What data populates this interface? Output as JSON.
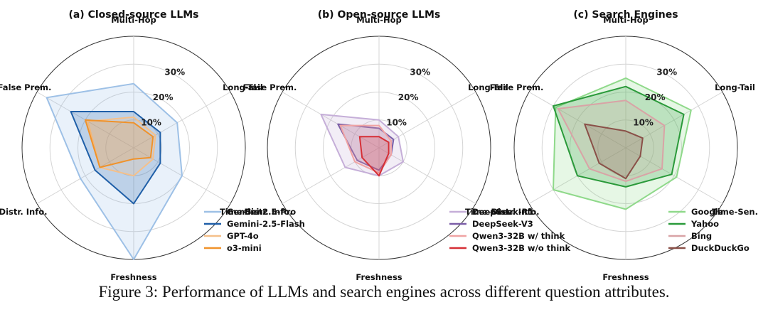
{
  "caption": "Figure 3: Performance of LLMs and search engines across different question attributes.",
  "chart_data": [
    {
      "type": "radar",
      "title": "(a) Closed-source LLMs",
      "axes": [
        "Multi-Hop",
        "Long-Tail",
        "Time-Sen.",
        "Freshness",
        "Distr. Info.",
        "False Prem."
      ],
      "rticks": [
        10,
        20,
        30
      ],
      "rtick_labels": [
        "10%",
        "20%",
        "30%"
      ],
      "rmax": 40,
      "grid": true,
      "legend_position": "bottom-right",
      "series": [
        {
          "name": "Gemini-2.5-Pro",
          "color": "#9dc0e6",
          "values": [
            23,
            18,
            20,
            40,
            22,
            36
          ]
        },
        {
          "name": "Gemini-2.5-Flash",
          "color": "#1f5fa8",
          "values": [
            13,
            11,
            11,
            20,
            16,
            26
          ]
        },
        {
          "name": "GPT-4o",
          "color": "#f5c08a",
          "values": [
            11,
            9,
            8,
            10,
            14,
            19
          ]
        },
        {
          "name": "o3-mini",
          "color": "#f0922a",
          "values": [
            9,
            8,
            7,
            4,
            14,
            20
          ]
        }
      ]
    },
    {
      "type": "radar",
      "title": "(b) Open-source LLMs",
      "axes": [
        "Multi-Hop",
        "Long-Tail",
        "Time-Sen.",
        "Freshness",
        "Distr. Info.",
        "False Prem."
      ],
      "rticks": [
        10,
        20,
        30
      ],
      "rtick_labels": [
        "10%",
        "20%",
        "30%"
      ],
      "rmax": 40,
      "grid": true,
      "legend_position": "bottom-right",
      "series": [
        {
          "name": "DeepSeek-R1",
          "color": "#c5aed8",
          "values": [
            10,
            8,
            10,
            10,
            14,
            24
          ]
        },
        {
          "name": "DeepSeek-V3",
          "color": "#7b5ea7",
          "values": [
            7,
            6,
            5,
            8,
            9,
            17
          ]
        },
        {
          "name": "Qwen3-32B w/ think",
          "color": "#f0a3a3",
          "values": [
            8,
            5,
            5,
            9,
            10,
            16
          ]
        },
        {
          "name": "Qwen3-32B w/o think",
          "color": "#d62f36",
          "values": [
            4,
            4,
            4,
            10,
            7,
            8
          ]
        }
      ]
    },
    {
      "type": "radar",
      "title": "(c) Search Engines",
      "axes": [
        "Multi-Hop",
        "Long-Tail",
        "Time-Sen.",
        "Freshness",
        "Distr. Info.",
        "False Prem."
      ],
      "rticks": [
        10,
        20,
        30
      ],
      "rtick_labels": [
        "10%",
        "20%",
        "30%"
      ],
      "rmax": 40,
      "grid": true,
      "legend_position": "bottom-right",
      "series": [
        {
          "name": "Google",
          "color": "#8fd98a",
          "values": [
            25,
            27,
            21,
            22,
            30,
            29
          ]
        },
        {
          "name": "Yahoo",
          "color": "#2a9a3a",
          "values": [
            22,
            24,
            19,
            14,
            20,
            30
          ]
        },
        {
          "name": "Bing",
          "color": "#d9a3a6",
          "values": [
            17,
            16,
            15,
            12,
            15,
            28
          ]
        },
        {
          "name": "DuckDuckGo",
          "color": "#8a5048",
          "values": [
            6,
            7,
            6,
            11,
            11,
            17
          ]
        }
      ]
    }
  ]
}
